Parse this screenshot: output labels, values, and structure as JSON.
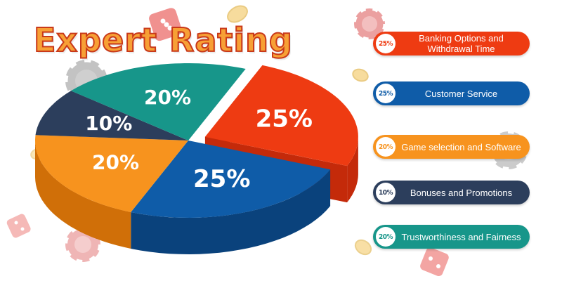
{
  "title": "Expert Rating",
  "chart_data": {
    "type": "pie",
    "title": "Expert Rating",
    "slices": [
      {
        "label": "Banking Options and Withdrawal Time",
        "value": 25,
        "display": "25%",
        "color": "#ee3b12",
        "side_color": "#c42a0a"
      },
      {
        "label": "Customer Service",
        "value": 25,
        "display": "25%",
        "color": "#0f5ca8",
        "side_color": "#0a427c"
      },
      {
        "label": "Game selection and Software",
        "value": 20,
        "display": "20%",
        "color": "#f7931e",
        "side_color": "#d06f08"
      },
      {
        "label": "Bonuses and Promotions",
        "value": 10,
        "display": "10%",
        "color": "#2c3e5c",
        "side_color": "#1d2b43"
      },
      {
        "label": "Trustworthiness and Fairness",
        "value": 20,
        "display": "20%",
        "color": "#17968a",
        "side_color": "#0f6f66"
      }
    ]
  },
  "legend": [
    {
      "badge": "25%",
      "label": "Banking Options and Withdrawal Time",
      "color": "#ee3b12"
    },
    {
      "badge": "25%",
      "label": "Customer Service",
      "color": "#0f5ca8"
    },
    {
      "badge": "20%",
      "label": "Game selection and Software",
      "color": "#f7931e"
    },
    {
      "badge": "10%",
      "label": "Bonuses and Promotions",
      "color": "#2c3e5c"
    },
    {
      "badge": "20%",
      "label": "Trustworthiness and Fairness",
      "color": "#17968a"
    }
  ],
  "decorations": [
    {
      "icon": "dice-icon"
    },
    {
      "icon": "poker-chip-icon"
    },
    {
      "icon": "gold-coin-icon"
    }
  ]
}
